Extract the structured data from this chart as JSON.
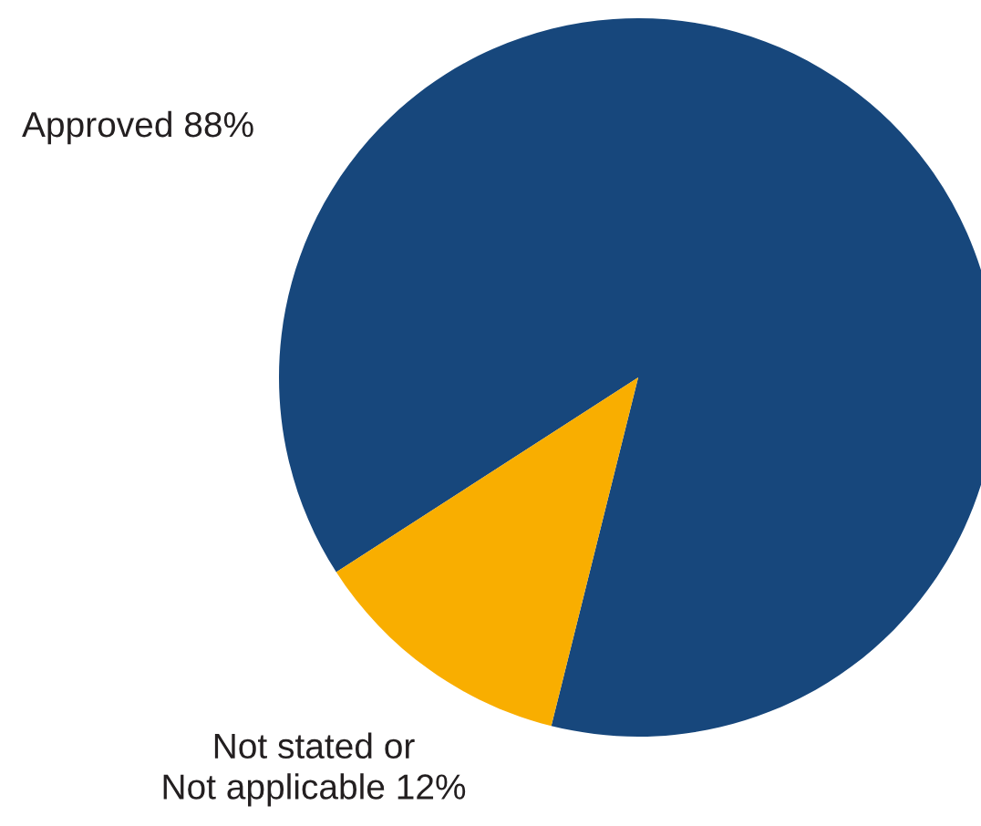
{
  "chart_data": {
    "type": "pie",
    "categories": [
      "Approved",
      "Not stated or\nNot applicable"
    ],
    "values": [
      88,
      12
    ],
    "value_labels": [
      "88%",
      "12%"
    ],
    "colors": [
      "#17477c",
      "#f9ae00"
    ],
    "legend": false
  }
}
